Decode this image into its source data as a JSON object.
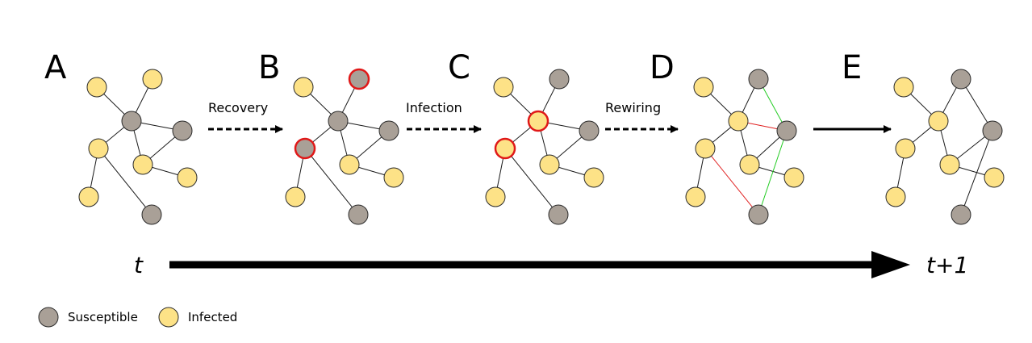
{
  "colors": {
    "susceptible": "#a9a097",
    "infected": "#fde287",
    "stroke": "#2a2a2a",
    "edge": "#1a1a1a",
    "highlight": "#e01818",
    "removed_edge": "#e02020",
    "added_edge": "#22cc22"
  },
  "panels": [
    {
      "letter": "A",
      "nodes": {
        "a": "I",
        "b": "I",
        "c": "S",
        "d": "S",
        "e": "I",
        "f": "I",
        "g": "I",
        "h": "I",
        "i": "S"
      }
    },
    {
      "letter": "B",
      "nodes": {
        "a": "I",
        "b": "S",
        "c": "S",
        "d": "S",
        "e": "S",
        "f": "I",
        "g": "I",
        "h": "I",
        "i": "S"
      },
      "highlighted": [
        "b",
        "e"
      ]
    },
    {
      "letter": "C",
      "nodes": {
        "a": "I",
        "b": "S",
        "c": "I",
        "d": "S",
        "e": "I",
        "f": "I",
        "g": "I",
        "h": "I",
        "i": "S"
      },
      "highlighted": [
        "c",
        "e"
      ]
    },
    {
      "letter": "D",
      "nodes": {
        "a": "I",
        "b": "S",
        "c": "I",
        "d": "S",
        "e": "I",
        "f": "I",
        "g": "I",
        "h": "I",
        "i": "S"
      }
    },
    {
      "letter": "E",
      "nodes": {
        "a": "I",
        "b": "S",
        "c": "I",
        "d": "S",
        "e": "I",
        "f": "I",
        "g": "I",
        "h": "I",
        "i": "S"
      }
    }
  ],
  "steps": [
    {
      "label": "Recovery",
      "style": "dashed"
    },
    {
      "label": "Infection",
      "style": "dashed"
    },
    {
      "label": "Rewiring",
      "style": "dashed"
    },
    {
      "label": "",
      "style": "solid"
    }
  ],
  "timeline": {
    "start": "t",
    "end": "t+1"
  },
  "legend": [
    {
      "label": "Susceptible",
      "state": "S"
    },
    {
      "label": "Infected",
      "state": "I"
    }
  ]
}
